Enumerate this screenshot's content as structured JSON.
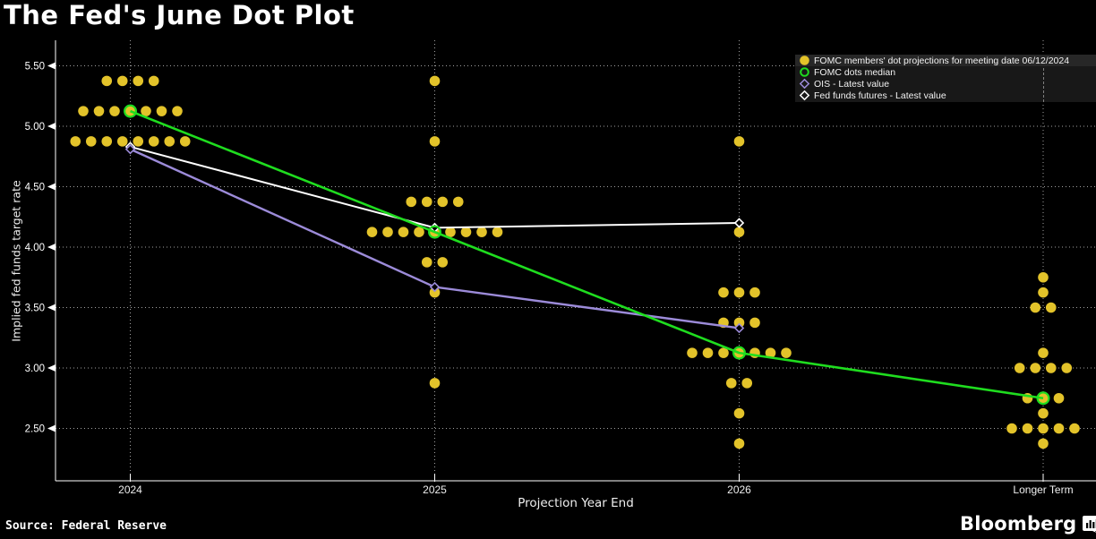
{
  "title": "The Fed's June Dot Plot",
  "source": "Source: Federal Reserve",
  "brand": {
    "name": "Bloomberg",
    "icon": "bloomberg-terminal-icon"
  },
  "colors": {
    "background": "#000000",
    "dot_yellow": "#E3C32A",
    "median_green": "#1FDD1F",
    "ois_purple": "#9C8BD9",
    "futures_white": "#FFFFFF",
    "grid": "#BFBFBF",
    "axis": "#FFFFFF",
    "legend_bg": "#181818",
    "legend_highlight": "#272727"
  },
  "legend": {
    "items": [
      {
        "label": "FOMC members' dot projections for meeting date 06/12/2024",
        "swatch": "filled-circle",
        "color": "#E3C32A",
        "highlighted": true
      },
      {
        "label": "FOMC dots median",
        "swatch": "open-circle",
        "color": "#1FDD1F",
        "highlighted": false
      },
      {
        "label": "OIS - Latest value",
        "swatch": "open-diamond",
        "color": "#9C8BD9",
        "highlighted": false
      },
      {
        "label": "Fed funds futures - Latest value",
        "swatch": "open-diamond",
        "color": "#FFFFFF",
        "highlighted": false
      }
    ]
  },
  "chart_data": {
    "type": "scatter",
    "title": "The Fed's June Dot Plot",
    "xlabel": "Projection Year End",
    "ylabel": "Implied fed funds target rate",
    "categories": [
      "2024",
      "2025",
      "2026",
      "Longer Term"
    ],
    "y_ticks": [
      "5.50",
      "5.00",
      "4.50",
      "4.00",
      "3.50",
      "3.00",
      "2.50"
    ],
    "ylim": [
      2.07,
      5.71
    ],
    "grid": "dotted",
    "legend_position": "top-right",
    "dot_columns": [
      {
        "category": "2024",
        "distribution": [
          {
            "rate": 5.375,
            "count": 4
          },
          {
            "rate": 5.125,
            "count": 7
          },
          {
            "rate": 4.875,
            "count": 8
          }
        ]
      },
      {
        "category": "2025",
        "distribution": [
          {
            "rate": 5.375,
            "count": 1
          },
          {
            "rate": 4.875,
            "count": 1
          },
          {
            "rate": 4.375,
            "count": 4
          },
          {
            "rate": 4.125,
            "count": 9
          },
          {
            "rate": 3.875,
            "count": 2
          },
          {
            "rate": 3.625,
            "count": 1
          },
          {
            "rate": 2.875,
            "count": 1
          }
        ]
      },
      {
        "category": "2026",
        "distribution": [
          {
            "rate": 4.875,
            "count": 1
          },
          {
            "rate": 4.125,
            "count": 1
          },
          {
            "rate": 3.625,
            "count": 3
          },
          {
            "rate": 3.375,
            "count": 3
          },
          {
            "rate": 3.125,
            "count": 7
          },
          {
            "rate": 2.875,
            "count": 2
          },
          {
            "rate": 2.625,
            "count": 1
          },
          {
            "rate": 2.375,
            "count": 1
          }
        ]
      },
      {
        "category": "Longer Term",
        "distribution": [
          {
            "rate": 3.75,
            "count": 1
          },
          {
            "rate": 3.625,
            "count": 1
          },
          {
            "rate": 3.5,
            "count": 2
          },
          {
            "rate": 3.125,
            "count": 1
          },
          {
            "rate": 3.0,
            "count": 4
          },
          {
            "rate": 2.75,
            "count": 3
          },
          {
            "rate": 2.625,
            "count": 1
          },
          {
            "rate": 2.5,
            "count": 5
          },
          {
            "rate": 2.375,
            "count": 1
          }
        ]
      }
    ],
    "series": [
      {
        "name": "FOMC members' dot projections for meeting date 06/12/2024",
        "type": "dots",
        "color": "#E3C32A"
      },
      {
        "name": "FOMC dots median",
        "type": "line",
        "marker": "open-circle",
        "color": "#1FDD1F",
        "categories": [
          "2024",
          "2025",
          "2026",
          "Longer Term"
        ],
        "values": [
          5.125,
          4.125,
          3.125,
          2.75
        ]
      },
      {
        "name": "OIS - Latest value",
        "type": "line",
        "marker": "open-diamond",
        "color": "#9C8BD9",
        "categories": [
          "2024",
          "2025",
          "2026"
        ],
        "values": [
          4.81,
          3.67,
          3.33
        ]
      },
      {
        "name": "Fed funds futures - Latest value",
        "type": "line",
        "marker": "open-diamond",
        "color": "#FFFFFF",
        "categories": [
          "2024",
          "2025",
          "2026"
        ],
        "values": [
          4.83,
          4.16,
          4.2
        ]
      }
    ]
  }
}
